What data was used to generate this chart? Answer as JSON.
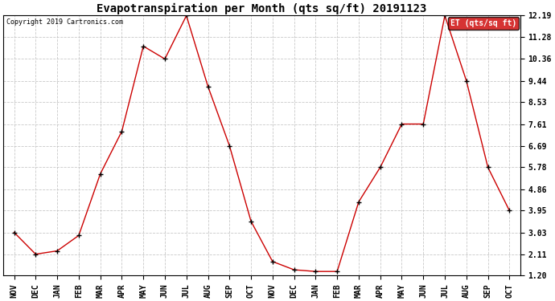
{
  "title": "Evapotranspiration per Month (qts sq/ft) 20191123",
  "copyright": "Copyright 2019 Cartronics.com",
  "legend_label": "ET (qts/sq ft)",
  "x_labels": [
    "NOV",
    "DEC",
    "JAN",
    "FEB",
    "MAR",
    "APR",
    "MAY",
    "JUN",
    "JUL",
    "AUG",
    "SEP",
    "OCT",
    "NOV",
    "DEC",
    "JAN",
    "FEB",
    "MAR",
    "APR",
    "MAY",
    "JUN",
    "JUL",
    "AUG",
    "SEP",
    "OCT"
  ],
  "y_values": [
    3.03,
    2.11,
    2.25,
    2.9,
    5.5,
    7.3,
    10.9,
    10.36,
    12.19,
    9.2,
    6.69,
    3.5,
    1.8,
    1.45,
    1.38,
    1.38,
    4.32,
    5.78,
    7.61,
    7.61,
    12.19,
    9.44,
    5.78,
    3.95
  ],
  "y_ticks": [
    1.2,
    2.11,
    3.03,
    3.95,
    4.86,
    5.78,
    6.69,
    7.61,
    8.53,
    9.44,
    10.36,
    11.28,
    12.19
  ],
  "y_tick_labels": [
    "1.20",
    "2.11",
    "3.03",
    "3.95",
    "4.86",
    "5.78",
    "6.69",
    "7.61",
    "8.53",
    "9.44",
    "10.36",
    "11.28",
    "12.19"
  ],
  "line_color": "#cc0000",
  "marker": "+",
  "marker_color": "#000000",
  "marker_size": 5,
  "marker_linewidth": 1.0,
  "background_color": "#ffffff",
  "grid_color": "#bbbbbb",
  "title_fontsize": 10,
  "tick_fontsize": 7,
  "copyright_fontsize": 6,
  "legend_bg": "#cc0000",
  "legend_text_color": "#ffffff",
  "legend_fontsize": 7,
  "ylim": [
    1.2,
    12.19
  ],
  "line_width": 1.0
}
